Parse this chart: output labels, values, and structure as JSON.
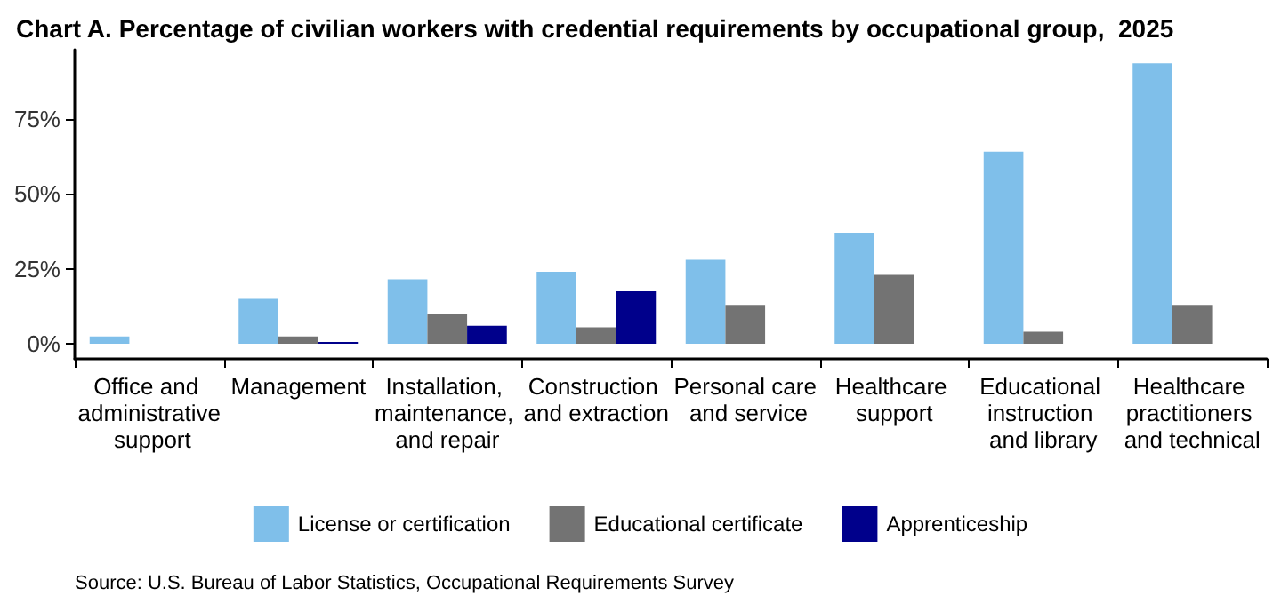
{
  "chart_data": {
    "type": "bar",
    "title": "Chart A. Percentage of civilian workers with credential requirements by occupational group,  2025",
    "categories": [
      "Office and administrative support",
      "Management",
      "Installation, maintenance, and repair",
      "Construction and extraction",
      "Personal care and service",
      "Healthcare support",
      "Educational instruction and library",
      "Healthcare practitioners and technical"
    ],
    "series": [
      {
        "name": "License or certification",
        "color": "#7fbfea",
        "values": [
          2.5,
          15,
          21.5,
          24,
          28,
          37,
          64,
          93.5
        ]
      },
      {
        "name": "Educational certificate",
        "color": "#737373",
        "values": [
          null,
          2.5,
          10,
          5.5,
          13,
          23,
          4,
          13
        ]
      },
      {
        "name": "Apprenticeship",
        "color": "#00008b",
        "values": [
          null,
          0.6,
          6,
          17.5,
          null,
          null,
          null,
          null
        ]
      }
    ],
    "ylim": [
      -5,
      98
    ],
    "yticks": [
      {
        "value": 0,
        "label": "0%"
      },
      {
        "value": 25,
        "label": "25%"
      },
      {
        "value": 50,
        "label": "50%"
      },
      {
        "value": 75,
        "label": "75%"
      }
    ],
    "grid": false,
    "legend": "bottom",
    "annotations": [
      "Source: U.S. Bureau of Labor Statistics, Occupational Requirements Survey"
    ]
  }
}
